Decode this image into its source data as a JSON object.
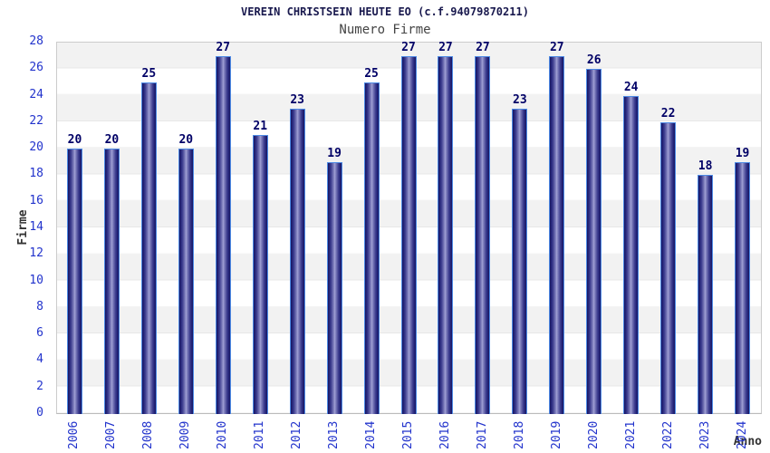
{
  "chart_data": {
    "type": "bar",
    "title": "VEREIN CHRISTSEIN HEUTE EO (c.f.94079870211)",
    "subtitle": "Numero Firme",
    "xlabel": "Anno",
    "ylabel": "Firme",
    "categories": [
      "2006",
      "2007",
      "2008",
      "2009",
      "2010",
      "2011",
      "2012",
      "2013",
      "2014",
      "2015",
      "2016",
      "2017",
      "2018",
      "2019",
      "2020",
      "2021",
      "2022",
      "2023",
      "2024"
    ],
    "values": [
      20,
      20,
      25,
      20,
      27,
      21,
      23,
      19,
      25,
      27,
      27,
      27,
      23,
      27,
      26,
      24,
      22,
      18,
      19
    ],
    "ylim": [
      0,
      28
    ],
    "ytick_step": 2,
    "legend": "none",
    "grid": "horizontal-bands-every-2-units",
    "colors": {
      "title": "#19194e",
      "subtitle": "#444444",
      "axis_title": "#333333",
      "tick_label": "#2233cc",
      "value_label": "#000066",
      "bar_border": "#4d8ae5",
      "bar_dark": "#17175f",
      "bar_mid": "#3c3c8e",
      "bar_light": "#a2a2d6",
      "band_gray": "#f2f2f2",
      "plot_border": "#cccccc"
    }
  }
}
